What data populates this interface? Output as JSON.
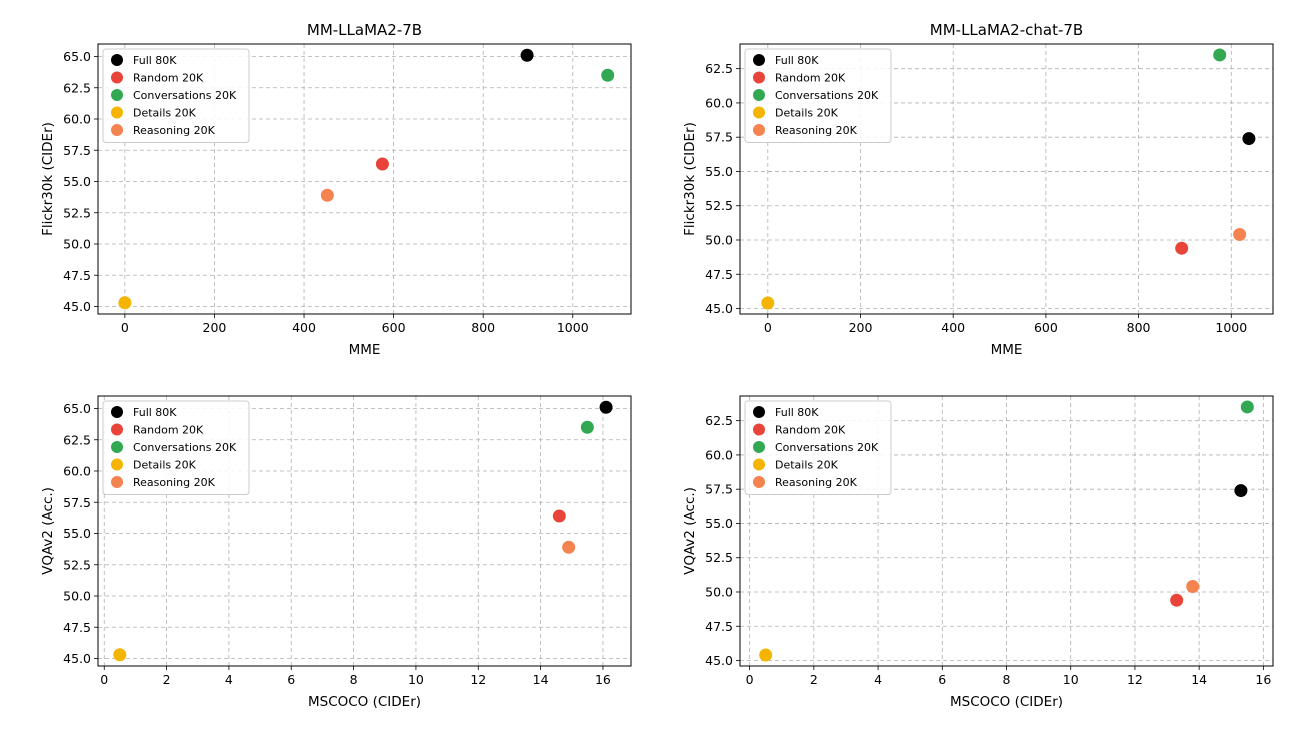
{
  "chart_data": [
    {
      "type": "scatter",
      "title": "MM-LLaMA2-7B",
      "xlabel": "MME",
      "ylabel": "Flickr30k (CIDEr)",
      "xlim": [
        -60,
        1130
      ],
      "ylim": [
        44.4,
        66.0
      ],
      "xticks": [
        0,
        200,
        400,
        600,
        800,
        1000
      ],
      "yticks": [
        45.0,
        47.5,
        50.0,
        52.5,
        55.0,
        57.5,
        60.0,
        62.5,
        65.0
      ],
      "grid": true,
      "legend_position": "upper-left",
      "series": [
        {
          "name": "Full 80K",
          "color": "#000000",
          "x": [
            898
          ],
          "y": [
            65.1
          ]
        },
        {
          "name": "Random 20K",
          "color": "#e8443a",
          "x": [
            575
          ],
          "y": [
            56.4
          ]
        },
        {
          "name": "Conversations 20K",
          "color": "#33a852",
          "x": [
            1078
          ],
          "y": [
            63.5
          ]
        },
        {
          "name": "Details 20K",
          "color": "#f4b400",
          "x": [
            0
          ],
          "y": [
            45.3
          ]
        },
        {
          "name": "Reasoning 20K",
          "color": "#f4834f",
          "x": [
            452
          ],
          "y": [
            53.9
          ]
        }
      ]
    },
    {
      "type": "scatter",
      "title": "MM-LLaMA2-chat-7B",
      "xlabel": "MME",
      "ylabel": "Flickr30k (CIDEr)",
      "xlim": [
        -60,
        1090
      ],
      "ylim": [
        44.6,
        64.3
      ],
      "xticks": [
        0,
        200,
        400,
        600,
        800,
        1000
      ],
      "yticks": [
        45.0,
        47.5,
        50.0,
        52.5,
        55.0,
        57.5,
        60.0,
        62.5
      ],
      "grid": true,
      "legend_position": "upper-left",
      "series": [
        {
          "name": "Full 80K",
          "color": "#000000",
          "x": [
            1038
          ],
          "y": [
            57.4
          ]
        },
        {
          "name": "Random 20K",
          "color": "#e8443a",
          "x": [
            893
          ],
          "y": [
            49.4
          ]
        },
        {
          "name": "Conversations 20K",
          "color": "#33a852",
          "x": [
            975
          ],
          "y": [
            63.5
          ]
        },
        {
          "name": "Details 20K",
          "color": "#f4b400",
          "x": [
            0
          ],
          "y": [
            45.4
          ]
        },
        {
          "name": "Reasoning 20K",
          "color": "#f4834f",
          "x": [
            1018
          ],
          "y": [
            50.4
          ]
        }
      ]
    },
    {
      "type": "scatter",
      "title": "",
      "xlabel": "MSCOCO (CIDEr)",
      "ylabel": "VQAv2 (Acc.)",
      "xlim": [
        -0.2,
        16.9
      ],
      "ylim": [
        44.4,
        66.0
      ],
      "xticks": [
        0,
        2,
        4,
        6,
        8,
        10,
        12,
        14,
        16
      ],
      "yticks": [
        45.0,
        47.5,
        50.0,
        52.5,
        55.0,
        57.5,
        60.0,
        62.5,
        65.0
      ],
      "grid": true,
      "legend_position": "upper-left",
      "series": [
        {
          "name": "Full 80K",
          "color": "#000000",
          "x": [
            16.1
          ],
          "y": [
            65.1
          ]
        },
        {
          "name": "Random 20K",
          "color": "#e8443a",
          "x": [
            14.6
          ],
          "y": [
            56.4
          ]
        },
        {
          "name": "Conversations 20K",
          "color": "#33a852",
          "x": [
            15.5
          ],
          "y": [
            63.5
          ]
        },
        {
          "name": "Details 20K",
          "color": "#f4b400",
          "x": [
            0.5
          ],
          "y": [
            45.3
          ]
        },
        {
          "name": "Reasoning 20K",
          "color": "#f4834f",
          "x": [
            14.9
          ],
          "y": [
            53.9
          ]
        }
      ]
    },
    {
      "type": "scatter",
      "title": "",
      "xlabel": "MSCOCO (CIDEr)",
      "ylabel": "VQAv2 (Acc.)",
      "xlim": [
        -0.3,
        16.3
      ],
      "ylim": [
        44.6,
        64.3
      ],
      "xticks": [
        0,
        2,
        4,
        6,
        8,
        10,
        12,
        14,
        16
      ],
      "yticks": [
        45.0,
        47.5,
        50.0,
        52.5,
        55.0,
        57.5,
        60.0,
        62.5
      ],
      "grid": true,
      "legend_position": "upper-left",
      "series": [
        {
          "name": "Full 80K",
          "color": "#000000",
          "x": [
            15.3
          ],
          "y": [
            57.4
          ]
        },
        {
          "name": "Random 20K",
          "color": "#e8443a",
          "x": [
            13.3
          ],
          "y": [
            49.4
          ]
        },
        {
          "name": "Conversations 20K",
          "color": "#33a852",
          "x": [
            15.5
          ],
          "y": [
            63.5
          ]
        },
        {
          "name": "Details 20K",
          "color": "#f4b400",
          "x": [
            0.5
          ],
          "y": [
            45.4
          ]
        },
        {
          "name": "Reasoning 20K",
          "color": "#f4834f",
          "x": [
            13.8
          ],
          "y": [
            50.4
          ]
        }
      ]
    }
  ]
}
